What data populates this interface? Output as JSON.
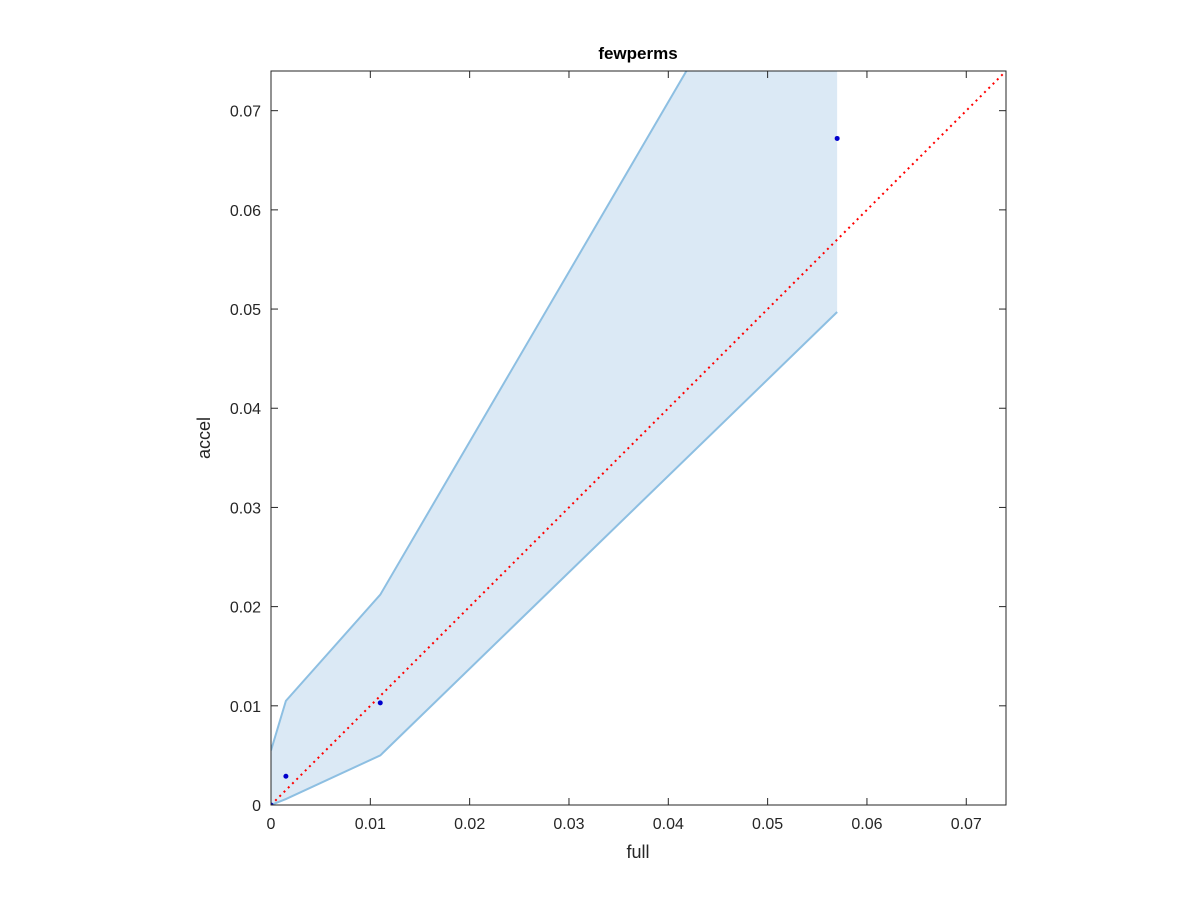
{
  "chart_data": {
    "type": "scatter",
    "title": "fewperms",
    "xlabel": "full",
    "ylabel": "accel",
    "xlim": [
      0,
      0.074
    ],
    "ylim": [
      0,
      0.074
    ],
    "xticks": [
      0,
      0.01,
      0.02,
      0.03,
      0.04,
      0.05,
      0.06,
      0.07
    ],
    "xtick_labels": [
      "0",
      "0.01",
      "0.02",
      "0.03",
      "0.04",
      "0.05",
      "0.06",
      "0.07"
    ],
    "yticks": [
      0,
      0.01,
      0.02,
      0.03,
      0.04,
      0.05,
      0.06,
      0.07
    ],
    "ytick_labels": [
      "0",
      "0.01",
      "0.02",
      "0.03",
      "0.04",
      "0.05",
      "0.06",
      "0.07"
    ],
    "grid": false,
    "colors": {
      "points": "#0000cc",
      "band_fill": "#dbe9f5",
      "band_edge": "#8dbfe2",
      "reference_line": "#ff0000",
      "axes": "#262626"
    },
    "points": [
      {
        "x": 0,
        "y": 0
      },
      {
        "x": 0.0015,
        "y": 0.0029
      },
      {
        "x": 0.011,
        "y": 0.0103
      },
      {
        "x": 0.057,
        "y": 0.0672
      }
    ],
    "band": {
      "x": [
        0,
        0.0015,
        0.011,
        0.057
      ],
      "upper": [
        0.0055,
        0.0105,
        0.0212,
        0.1
      ],
      "lower": [
        0,
        0.0006,
        0.005,
        0.0497
      ]
    },
    "reference_line": {
      "style": "dotted",
      "x": [
        0,
        0.074
      ],
      "y": [
        0,
        0.074
      ]
    }
  }
}
